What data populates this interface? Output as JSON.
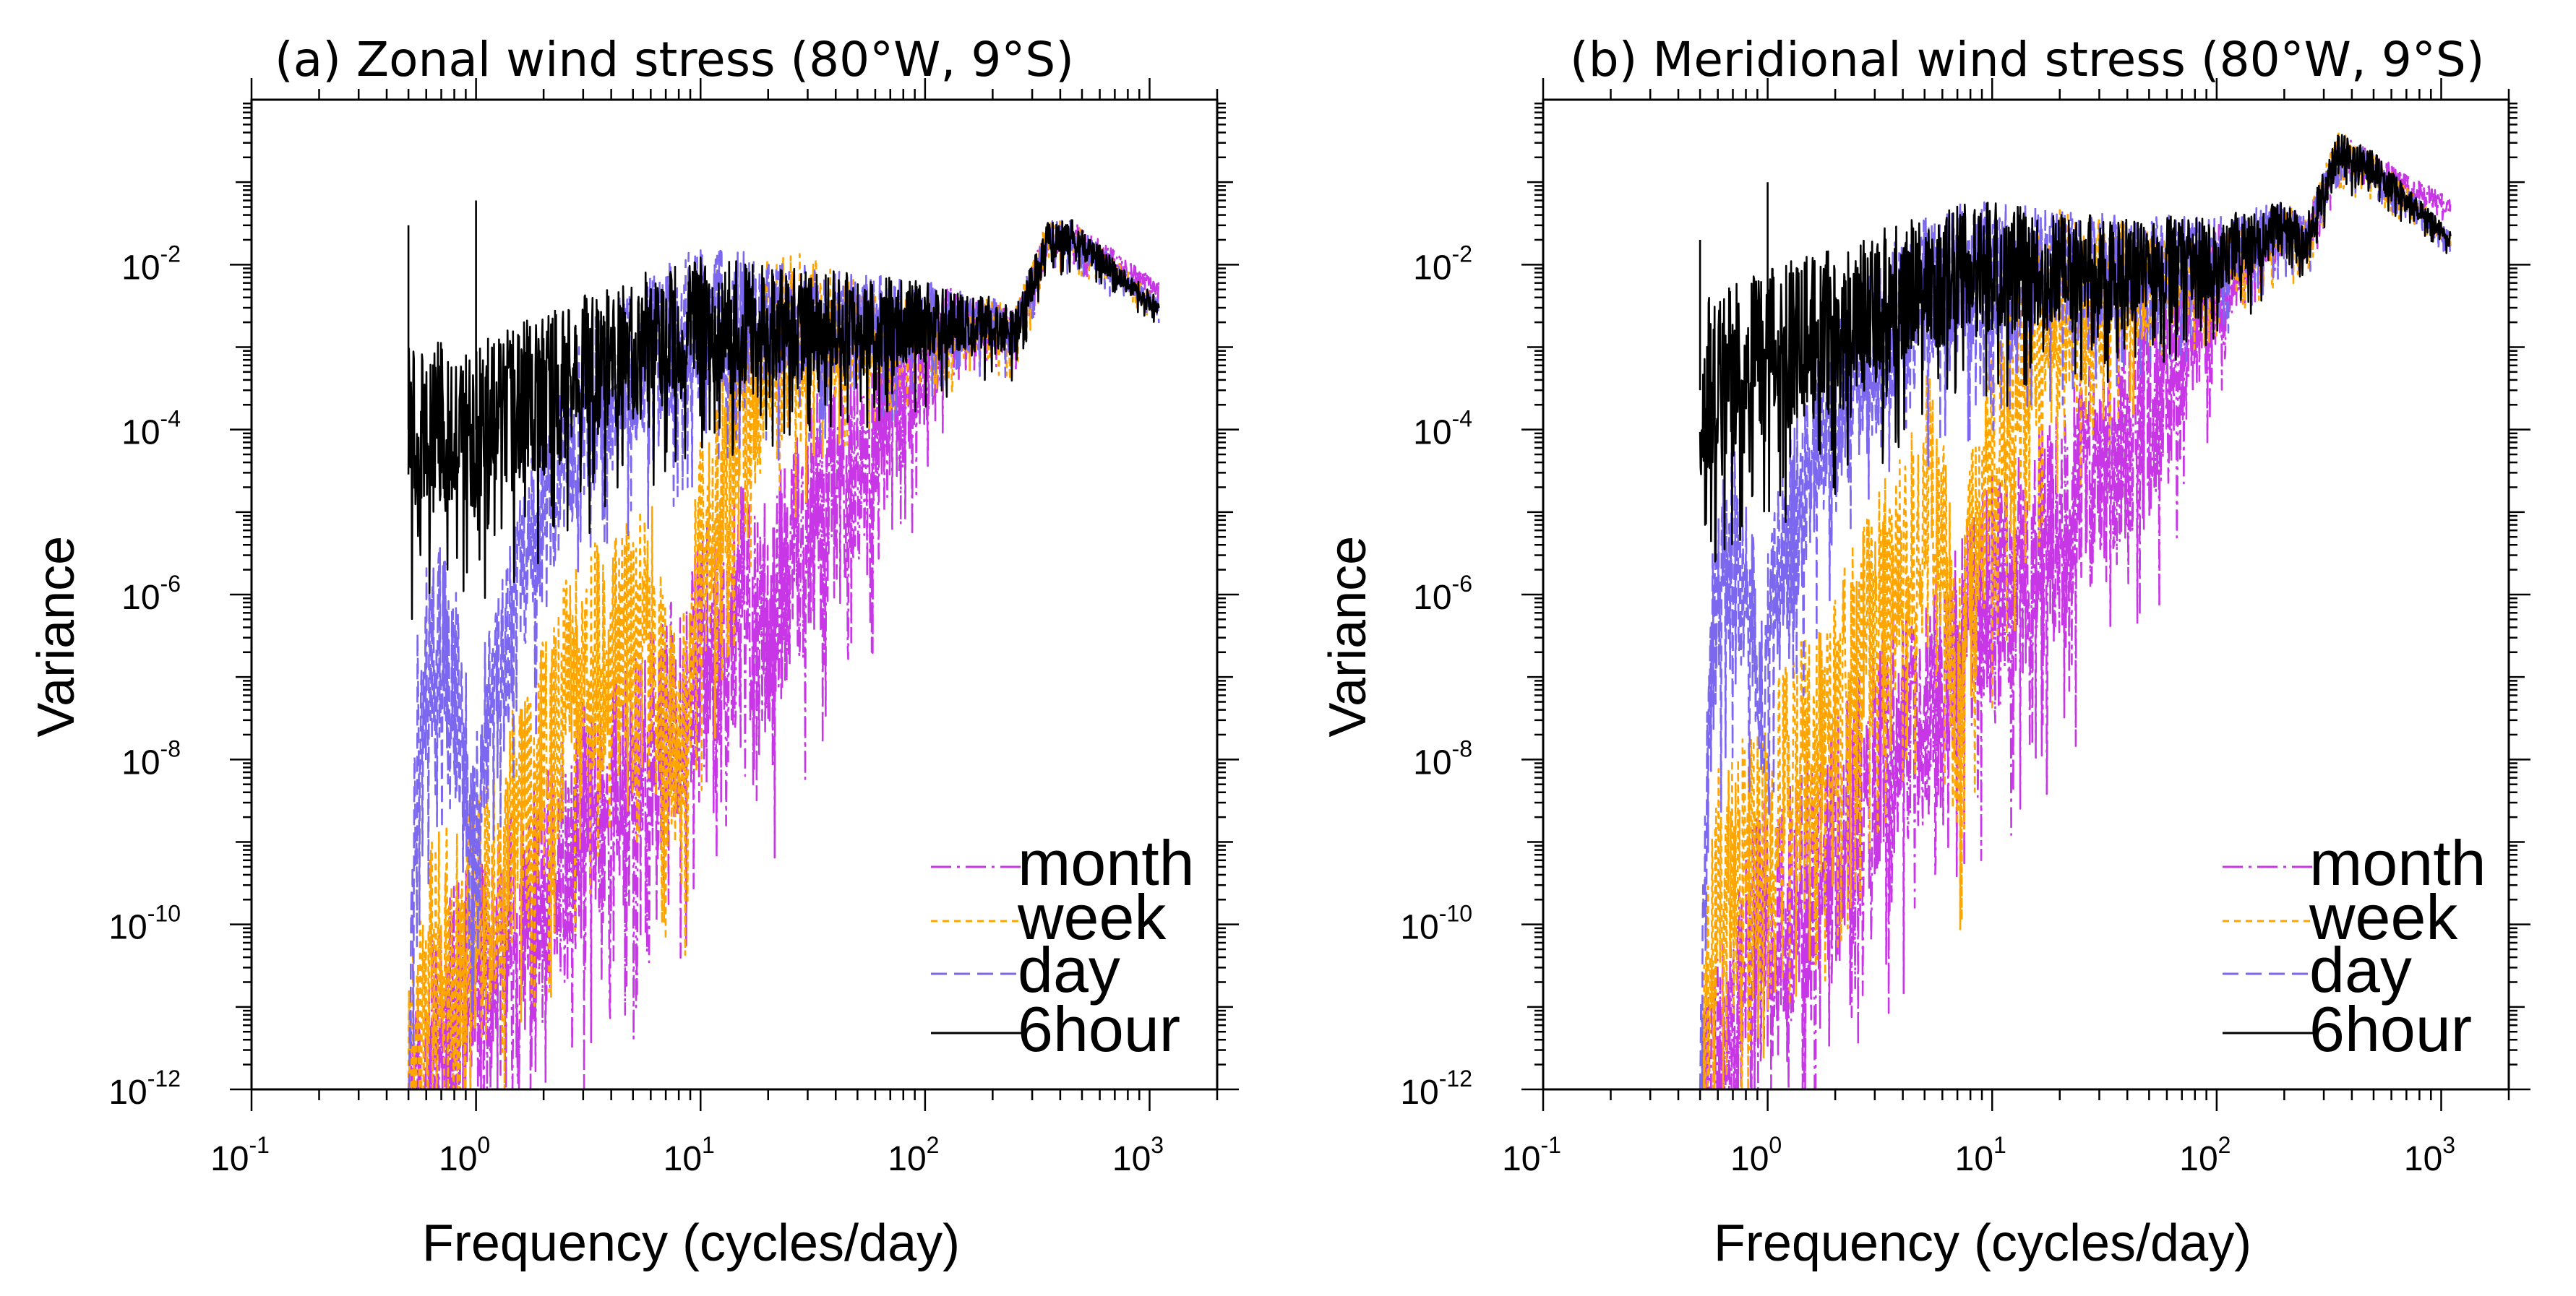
{
  "figure": {
    "panels": [
      {
        "title": "(a) Zonal wind stress (80°W, 9°S)"
      },
      {
        "title": "(b) Meridional wind stress (80°W, 9°S)"
      }
    ]
  },
  "chart_data": [
    {
      "type": "line",
      "title": "(a) Zonal wind stress (80°W, 9°S)",
      "xlabel": "Frequency (cycles/day)",
      "ylabel": "Variance",
      "xscale": "log",
      "yscale": "log",
      "xlim": [
        0.1,
        2000
      ],
      "ylim": [
        1e-12,
        1
      ],
      "x_tick_values": [
        0.1,
        1,
        10,
        100,
        1000
      ],
      "x_tick_labels": [
        {
          "base": "10",
          "exp": "-1"
        },
        {
          "base": "10",
          "exp": "0"
        },
        {
          "base": "10",
          "exp": "1"
        },
        {
          "base": "10",
          "exp": "2"
        },
        {
          "base": "10",
          "exp": "3"
        }
      ],
      "y_tick_values": [
        1e-12,
        1e-10,
        1e-08,
        1e-06,
        0.0001,
        0.01
      ],
      "y_tick_labels": [
        {
          "base": "10",
          "exp": "-12"
        },
        {
          "base": "10",
          "exp": "-10"
        },
        {
          "base": "10",
          "exp": "-8"
        },
        {
          "base": "10",
          "exp": "-6"
        },
        {
          "base": "10",
          "exp": "-4"
        },
        {
          "base": "10",
          "exp": "-2"
        }
      ],
      "legend_position": "bottom-right",
      "series": [
        {
          "name": "month",
          "color": "#c837e6",
          "dash": "dashdot",
          "seed": 11,
          "anchors": [
            [
              0.55,
              1e-12
            ],
            [
              0.8,
              8e-12
            ],
            [
              1,
              2e-11
            ],
            [
              2,
              2e-10
            ],
            [
              3,
              1.5e-09
            ],
            [
              5,
              6e-09
            ],
            [
              7,
              2e-08
            ],
            [
              10,
              2e-07
            ],
            [
              15,
              8e-07
            ],
            [
              20,
              5e-07
            ],
            [
              30,
              8e-06
            ],
            [
              50,
              5e-05
            ],
            [
              70,
              0.0002
            ],
            [
              100,
              0.0005
            ],
            [
              130,
              0.002
            ],
            [
              200,
              0.002
            ],
            [
              250,
              0.0015
            ],
            [
              350,
              0.02
            ],
            [
              450,
              0.022
            ],
            [
              1100,
              0.005
            ]
          ],
          "noise": [
            [
              0.5,
              1.6
            ],
            [
              50,
              1.4
            ],
            [
              150,
              0.3
            ],
            [
              1100,
              0.1
            ]
          ]
        },
        {
          "name": "week",
          "color": "#ffa500",
          "dash": "short",
          "seed": 22,
          "anchors": [
            [
              0.5,
              1e-12
            ],
            [
              0.6,
              3e-11
            ],
            [
              1,
              1.5e-10
            ],
            [
              2,
              1e-08
            ],
            [
              3,
              2e-07
            ],
            [
              4,
              2e-07
            ],
            [
              5,
              4e-07
            ],
            [
              6,
              9e-07
            ],
            [
              7,
              3e-08
            ],
            [
              8,
              1e-08
            ],
            [
              10,
              3e-06
            ],
            [
              15,
              0.0001
            ],
            [
              20,
              0.001
            ],
            [
              30,
              0.0015
            ],
            [
              50,
              0.0015
            ],
            [
              100,
              0.0015
            ],
            [
              200,
              0.002
            ],
            [
              250,
              0.0015
            ],
            [
              350,
              0.02
            ],
            [
              450,
              0.022
            ],
            [
              1100,
              0.003
            ]
          ],
          "noise": [
            [
              0.5,
              1.5
            ],
            [
              15,
              1.4
            ],
            [
              60,
              0.5
            ],
            [
              200,
              0.3
            ],
            [
              1100,
              0.1
            ]
          ]
        },
        {
          "name": "day",
          "color": "#7b68ee",
          "dash": "long",
          "seed": 33,
          "anchors": [
            [
              0.5,
              1e-12
            ],
            [
              0.55,
              5e-08
            ],
            [
              0.6,
              1.5e-07
            ],
            [
              0.7,
              3e-07
            ],
            [
              0.8,
              1e-07
            ],
            [
              0.95,
              3e-09
            ],
            [
              1.05,
              1e-08
            ],
            [
              1.5,
              8e-07
            ],
            [
              2,
              1e-05
            ],
            [
              3,
              0.00015
            ],
            [
              5,
              0.0006
            ],
            [
              8,
              0.0015
            ],
            [
              12,
              0.0025
            ],
            [
              20,
              0.002
            ],
            [
              50,
              0.002
            ],
            [
              100,
              0.002
            ],
            [
              200,
              0.002
            ],
            [
              250,
              0.0015
            ],
            [
              350,
              0.02
            ],
            [
              450,
              0.022
            ],
            [
              1100,
              0.003
            ]
          ],
          "noise": [
            [
              0.5,
              1.3
            ],
            [
              10,
              0.9
            ],
            [
              100,
              0.5
            ],
            [
              200,
              0.3
            ],
            [
              1100,
              0.1
            ]
          ]
        },
        {
          "name": "6hour",
          "color": "#000000",
          "dash": "solid",
          "seed": 44,
          "anchors": [
            [
              0.5,
              0.0001
            ],
            [
              1,
              0.0001
            ],
            [
              2,
              0.0003
            ],
            [
              5,
              0.001
            ],
            [
              10,
              0.002
            ],
            [
              20,
              0.002
            ],
            [
              50,
              0.002
            ],
            [
              100,
              0.002
            ],
            [
              200,
              0.002
            ],
            [
              250,
              0.0015
            ],
            [
              350,
              0.02
            ],
            [
              450,
              0.022
            ],
            [
              1100,
              0.003
            ]
          ],
          "noise": [
            [
              0.5,
              1.1
            ],
            [
              10,
              0.8
            ],
            [
              100,
              0.5
            ],
            [
              200,
              0.3
            ],
            [
              1100,
              0.1
            ]
          ],
          "spikes": [
            [
              0.5,
              0.03
            ],
            [
              1,
              0.06
            ]
          ]
        }
      ]
    },
    {
      "type": "line",
      "title": "(b) Meridional wind stress (80°W, 9°S)",
      "xlabel": "Frequency (cycles/day)",
      "ylabel": "Variance",
      "xscale": "log",
      "yscale": "log",
      "xlim": [
        0.1,
        2000
      ],
      "ylim": [
        1e-12,
        1
      ],
      "x_tick_values": [
        0.1,
        1,
        10,
        100,
        1000
      ],
      "x_tick_labels": [
        {
          "base": "10",
          "exp": "-1"
        },
        {
          "base": "10",
          "exp": "0"
        },
        {
          "base": "10",
          "exp": "1"
        },
        {
          "base": "10",
          "exp": "2"
        },
        {
          "base": "10",
          "exp": "3"
        }
      ],
      "y_tick_values": [
        1e-12,
        1e-10,
        1e-08,
        1e-06,
        0.0001,
        0.01
      ],
      "y_tick_labels": [
        {
          "base": "10",
          "exp": "-12"
        },
        {
          "base": "10",
          "exp": "-10"
        },
        {
          "base": "10",
          "exp": "-8"
        },
        {
          "base": "10",
          "exp": "-6"
        },
        {
          "base": "10",
          "exp": "-4"
        },
        {
          "base": "10",
          "exp": "-2"
        }
      ],
      "legend_position": "bottom-right",
      "series": [
        {
          "name": "month",
          "color": "#c837e6",
          "dash": "dashdot",
          "seed": 55,
          "anchors": [
            [
              0.55,
              1e-12
            ],
            [
              0.8,
              3e-11
            ],
            [
              1,
              1e-10
            ],
            [
              2,
              1e-09
            ],
            [
              3,
              1e-08
            ],
            [
              5,
              5e-08
            ],
            [
              7,
              2e-07
            ],
            [
              10,
              1e-06
            ],
            [
              15,
              3e-06
            ],
            [
              20,
              8e-06
            ],
            [
              30,
              5e-05
            ],
            [
              50,
              0.0002
            ],
            [
              70,
              0.001
            ],
            [
              100,
              0.006
            ],
            [
              150,
              0.015
            ],
            [
              200,
              0.03
            ],
            [
              250,
              0.02
            ],
            [
              350,
              0.25
            ],
            [
              500,
              0.15
            ],
            [
              1100,
              0.05
            ]
          ],
          "noise": [
            [
              0.5,
              1.6
            ],
            [
              50,
              1.4
            ],
            [
              150,
              0.3
            ],
            [
              1100,
              0.1
            ]
          ]
        },
        {
          "name": "week",
          "color": "#ffa500",
          "dash": "short",
          "seed": 66,
          "anchors": [
            [
              0.5,
              1e-12
            ],
            [
              0.6,
              3e-10
            ],
            [
              1,
              2e-09
            ],
            [
              2,
              5e-08
            ],
            [
              3,
              5e-07
            ],
            [
              4,
              3e-06
            ],
            [
              5,
              2e-05
            ],
            [
              6,
              1e-05
            ],
            [
              7,
              3e-08
            ],
            [
              8,
              3e-06
            ],
            [
              10,
              5e-05
            ],
            [
              15,
              0.001
            ],
            [
              20,
              0.003
            ],
            [
              30,
              0.005
            ],
            [
              50,
              0.006
            ],
            [
              100,
              0.01
            ],
            [
              200,
              0.03
            ],
            [
              250,
              0.02
            ],
            [
              350,
              0.25
            ],
            [
              500,
              0.15
            ],
            [
              1100,
              0.02
            ]
          ],
          "noise": [
            [
              0.5,
              1.5
            ],
            [
              15,
              1.4
            ],
            [
              60,
              0.5
            ],
            [
              200,
              0.3
            ],
            [
              1100,
              0.1
            ]
          ]
        },
        {
          "name": "day",
          "color": "#7b68ee",
          "dash": "long",
          "seed": 77,
          "anchors": [
            [
              0.5,
              1e-12
            ],
            [
              0.55,
              1e-07
            ],
            [
              0.6,
              8e-07
            ],
            [
              0.7,
              4e-06
            ],
            [
              0.8,
              2e-06
            ],
            [
              0.95,
              3e-08
            ],
            [
              1.05,
              1e-06
            ],
            [
              1.5,
              3e-05
            ],
            [
              2,
              0.0002
            ],
            [
              3,
              0.001
            ],
            [
              5,
              0.004
            ],
            [
              8,
              0.008
            ],
            [
              12,
              0.01
            ],
            [
              20,
              0.008
            ],
            [
              50,
              0.01
            ],
            [
              100,
              0.012
            ],
            [
              200,
              0.03
            ],
            [
              250,
              0.02
            ],
            [
              350,
              0.25
            ],
            [
              500,
              0.15
            ],
            [
              1100,
              0.02
            ]
          ],
          "noise": [
            [
              0.5,
              1.3
            ],
            [
              10,
              0.9
            ],
            [
              100,
              0.5
            ],
            [
              200,
              0.3
            ],
            [
              1100,
              0.1
            ]
          ]
        },
        {
          "name": "6hour",
          "color": "#000000",
          "dash": "solid",
          "seed": 88,
          "anchors": [
            [
              0.5,
              0.0003
            ],
            [
              1,
              0.0008
            ],
            [
              2,
              0.002
            ],
            [
              5,
              0.006
            ],
            [
              10,
              0.01
            ],
            [
              20,
              0.008
            ],
            [
              50,
              0.01
            ],
            [
              100,
              0.012
            ],
            [
              200,
              0.03
            ],
            [
              250,
              0.02
            ],
            [
              350,
              0.25
            ],
            [
              500,
              0.15
            ],
            [
              1100,
              0.02
            ]
          ],
          "noise": [
            [
              0.5,
              1.1
            ],
            [
              10,
              0.8
            ],
            [
              100,
              0.5
            ],
            [
              200,
              0.3
            ],
            [
              1100,
              0.1
            ]
          ],
          "spikes": [
            [
              0.5,
              0.02
            ],
            [
              1,
              0.1
            ]
          ]
        }
      ]
    }
  ]
}
